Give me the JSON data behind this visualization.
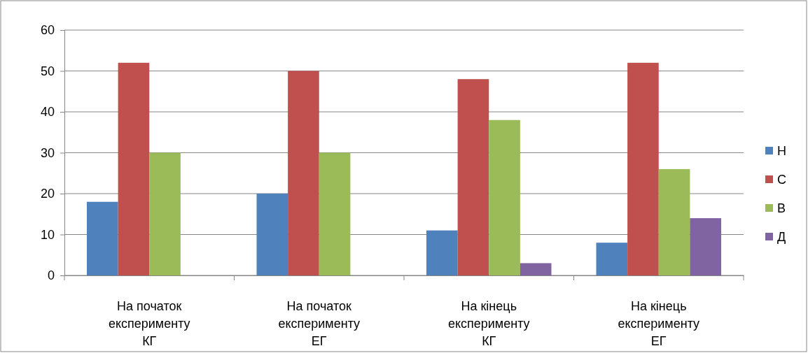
{
  "chart_data": {
    "type": "bar",
    "categories": [
      "На початок експерименту КГ",
      "На початок експерименту ЕГ",
      "На кінець експерименту КГ",
      "На кінець експерименту ЕГ"
    ],
    "series": [
      {
        "name": "Н",
        "color": "#4f81bd",
        "values": [
          18,
          20,
          11,
          8
        ]
      },
      {
        "name": "С",
        "color": "#c0504d",
        "values": [
          52,
          50,
          48,
          52
        ]
      },
      {
        "name": "В",
        "color": "#9bbb59",
        "values": [
          30,
          30,
          38,
          26
        ]
      },
      {
        "name": "Д",
        "color": "#8064a2",
        "values": [
          null,
          null,
          3,
          14
        ]
      }
    ],
    "ylim": [
      0,
      60
    ],
    "yticks": [
      0,
      10,
      20,
      30,
      40,
      50,
      60
    ],
    "grid": "y",
    "legend": "right"
  }
}
